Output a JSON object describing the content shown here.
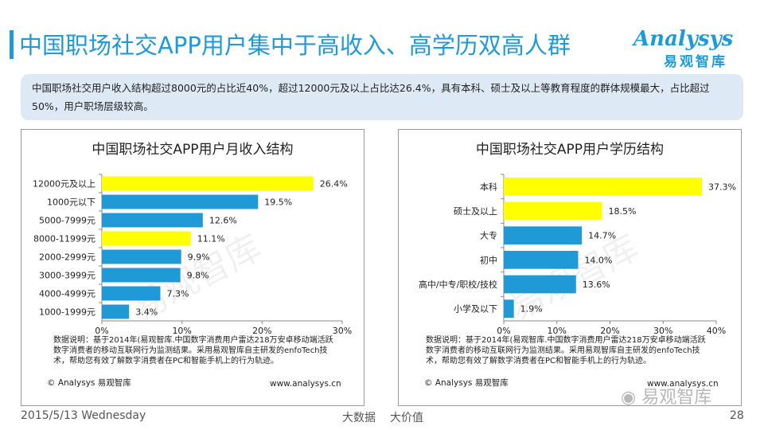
{
  "header": {
    "title": "中国职场社交APP用户集中于高收入、高学历双高人群",
    "logo_main": "Analysys",
    "logo_sub": "易观智库"
  },
  "summary": {
    "text": "中国职场社交用户收入结构超过8000元的占比近40%，超过12000元及以上占比达26.4%，具有本科、硕士及以上等教育程度的群体规模最大，占比超过50%，用户职场层级较高。"
  },
  "left_panel": {
    "note_line1": "数据说明：基于2014年(易观智库.中国数字消费用户雷达218万安卓移动端活跃",
    "note_line2": "数字消费者的移动互联网行为监测结果。采用易观智库自主研发的enfoTech技",
    "note_line3": "术，帮助您有效了解数字消费者在PC和智能手机上的行为轨迹。",
    "footer_left": "© Analysys 易观智库",
    "footer_right": "www.analysys.cn",
    "watermark": "易观智库"
  },
  "right_panel": {
    "note_line1": "数据说明：基于2014年(易观智库.中国数字消费用户雷达218万安卓移动端活跃",
    "note_line2": "数字消费者的移动互联网行为监测结果。采用易观智库自主研发的enfoTech技",
    "note_line3": "术，帮助您有效了解数字消费者在PC和智能手机上的行为轨迹。",
    "footer_left": "© Analysys 易观智库",
    "footer_right": "www.analysys.cn",
    "watermark": "易观智库"
  },
  "wechat_watermark": "易观智库",
  "footer": {
    "date": "2015/5/13 Wednesday",
    "center_left": "大数据",
    "center_right": "大价值",
    "page_number": "28"
  },
  "colors": {
    "accent": "#1f9ad6",
    "highlight": "#ffff00"
  },
  "chart_data": [
    {
      "type": "bar",
      "orientation": "horizontal",
      "title": "中国职场社交APP用户月收入结构",
      "categories": [
        "12000元及以上",
        "1000元以下",
        "5000-7999元",
        "8000-11999元",
        "2000-2999元",
        "3000-3999元",
        "4000-4999元",
        "1000-1999元"
      ],
      "values": [
        26.4,
        19.5,
        12.6,
        11.1,
        9.9,
        9.8,
        7.3,
        3.4
      ],
      "value_labels": [
        "26.4%",
        "19.5%",
        "12.6%",
        "11.1%",
        "9.9%",
        "9.8%",
        "7.3%",
        "3.4%"
      ],
      "highlight": [
        true,
        false,
        false,
        true,
        false,
        false,
        false,
        false
      ],
      "xlim": [
        0,
        30
      ],
      "xticks": [
        "0%",
        "10%",
        "20%",
        "30%"
      ]
    },
    {
      "type": "bar",
      "orientation": "horizontal",
      "title": "中国职场社交APP用户学历结构",
      "categories": [
        "本科",
        "硕士及以上",
        "大专",
        "初中",
        "高中/中专/职校/技校",
        "小学及以下"
      ],
      "values": [
        37.3,
        18.5,
        14.7,
        14.0,
        13.6,
        1.9
      ],
      "value_labels": [
        "37.3%",
        "18.5%",
        "14.7%",
        "14.0%",
        "13.6%",
        "1.9%"
      ],
      "highlight": [
        true,
        true,
        false,
        false,
        false,
        false
      ],
      "xlim": [
        0,
        40
      ],
      "xticks": [
        "0%",
        "10%",
        "20%",
        "30%",
        "40%"
      ]
    }
  ]
}
